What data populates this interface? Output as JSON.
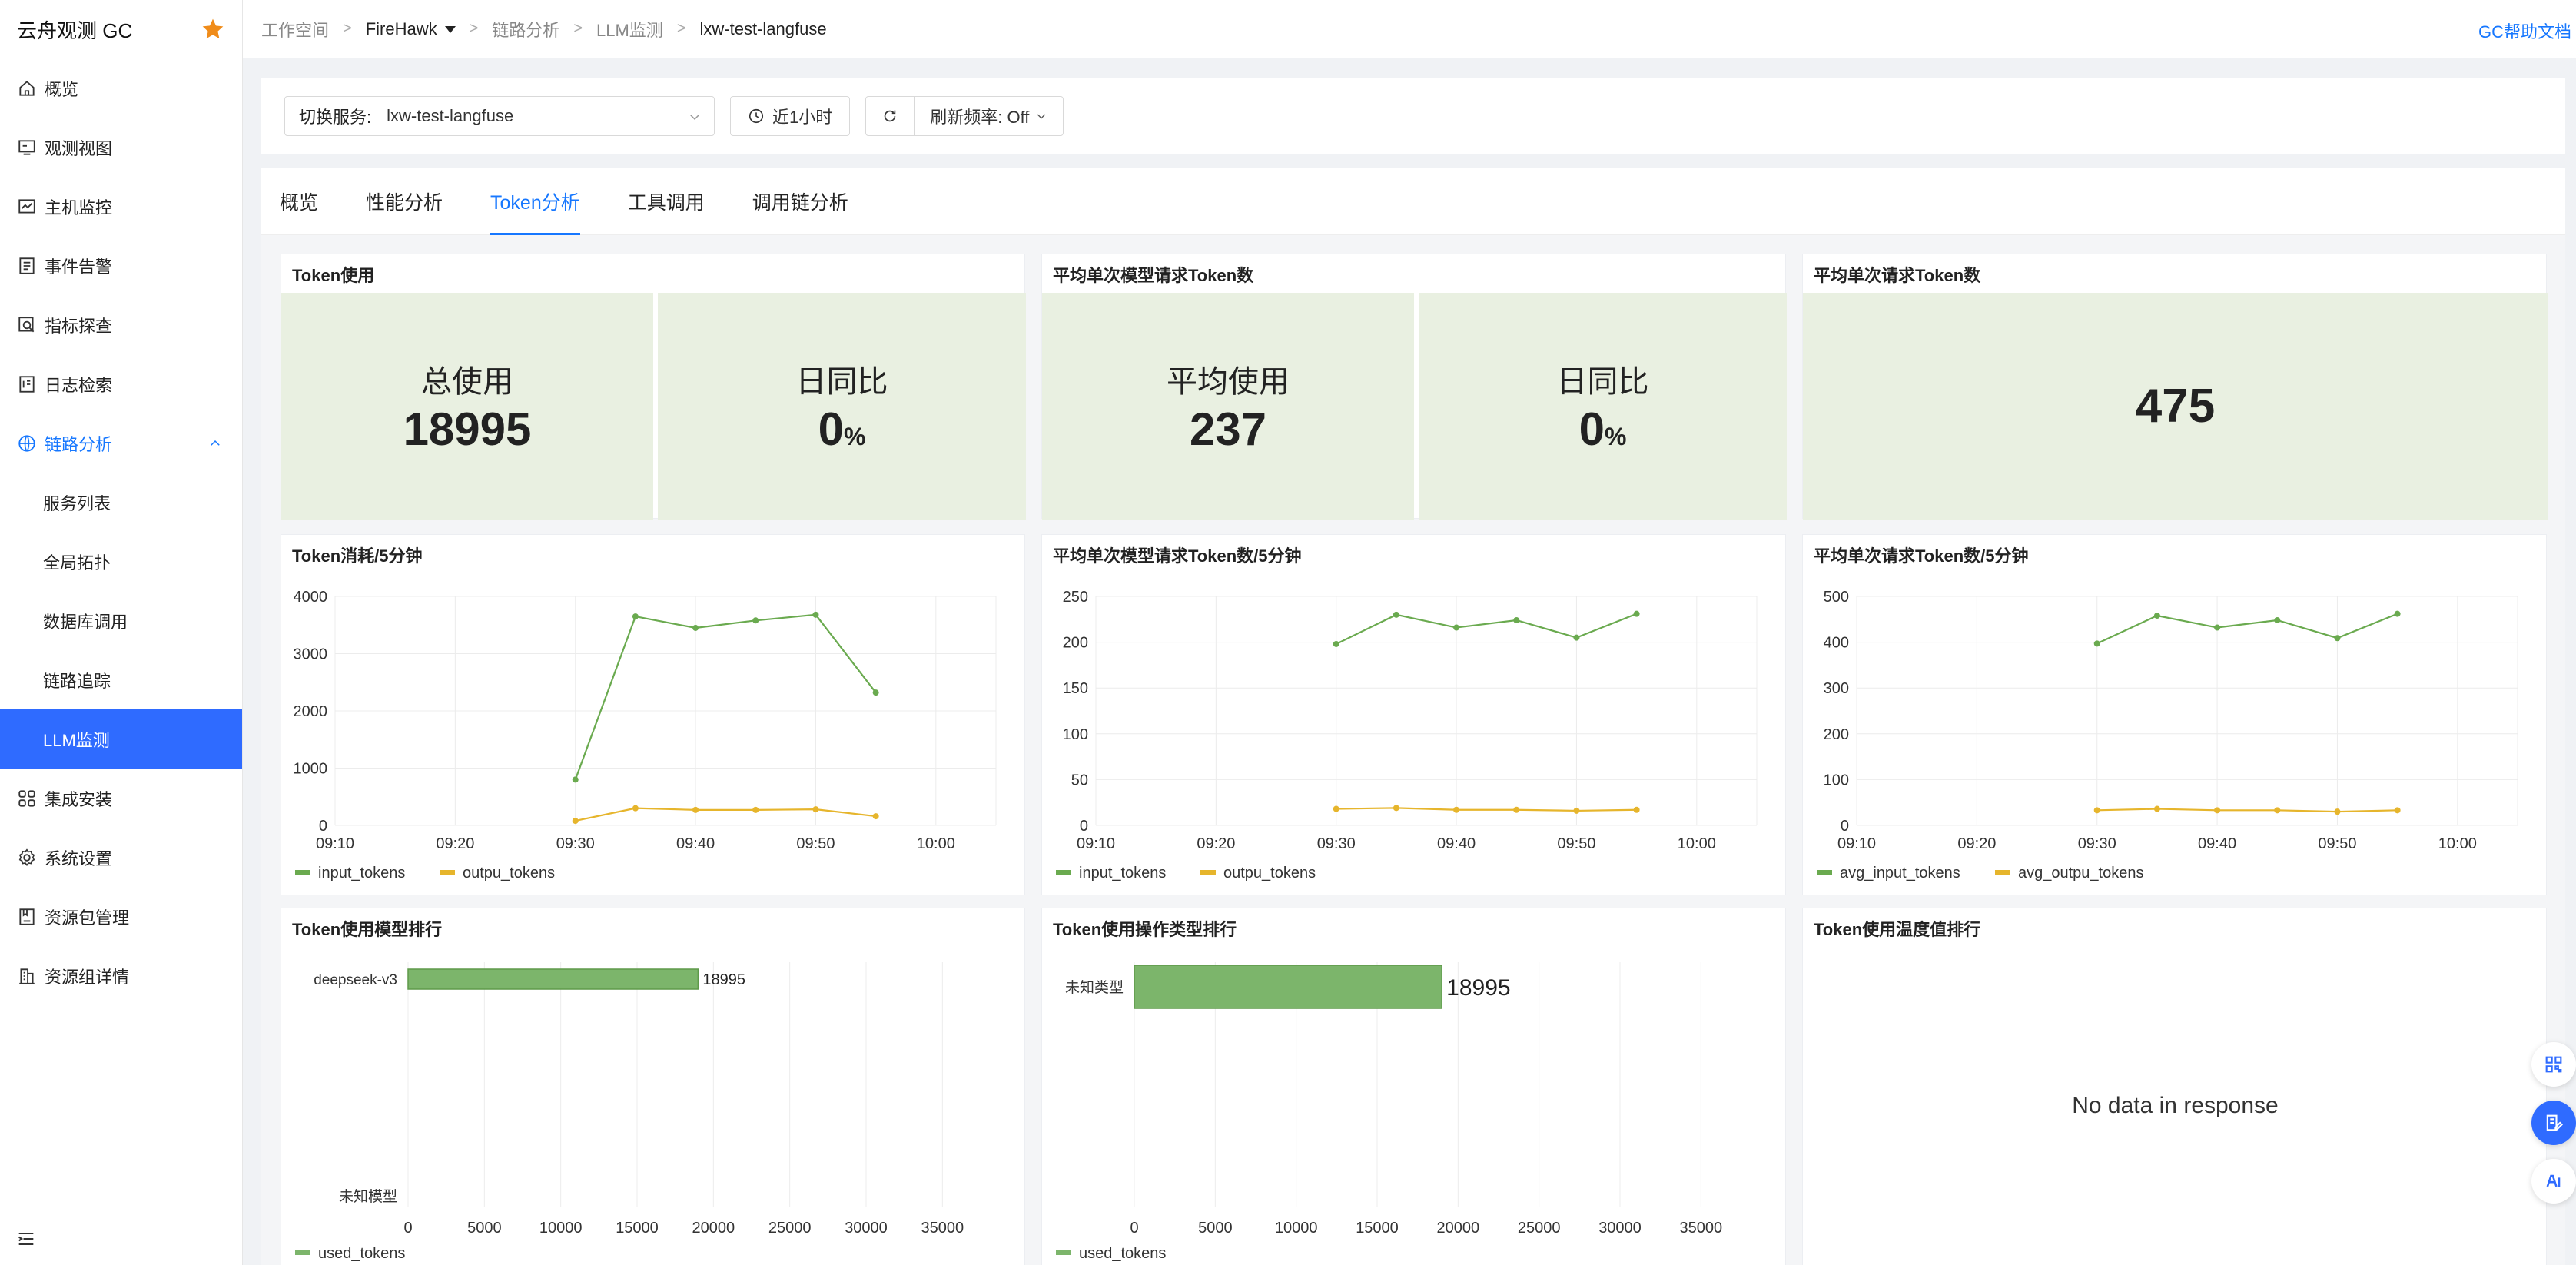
{
  "app": {
    "brand": "云舟观测 GC",
    "help_label": "GC帮助文档"
  },
  "breadcrumb": {
    "workspace": "工作空间",
    "project": "FireHawk",
    "section": "链路分析",
    "subsection": "LLM监测",
    "service": "lxw-test-langfuse"
  },
  "sidebar": {
    "items": [
      {
        "label": "概览",
        "icon": "home-icon"
      },
      {
        "label": "观测视图",
        "icon": "monitor-icon"
      },
      {
        "label": "主机监控",
        "icon": "host-chart-icon"
      },
      {
        "label": "事件告警",
        "icon": "event-list-icon"
      },
      {
        "label": "指标探查",
        "icon": "metric-search-icon"
      },
      {
        "label": "日志检索",
        "icon": "log-icon"
      },
      {
        "label": "链路分析",
        "icon": "trace-globe-icon"
      }
    ],
    "sub_items": [
      "服务列表",
      "全局拓扑",
      "数据库调用",
      "链路追踪",
      "LLM监测"
    ],
    "items_after": [
      {
        "label": "集成安装",
        "icon": "grid-icon"
      },
      {
        "label": "系统设置",
        "icon": "settings-icon"
      },
      {
        "label": "资源包管理",
        "icon": "package-icon"
      },
      {
        "label": "资源组详情",
        "icon": "building-icon"
      }
    ]
  },
  "filters": {
    "service_label": "切换服务:",
    "service_value": "lxw-test-langfuse",
    "time_range": "近1小时",
    "refresh_label": "刷新频率: Off"
  },
  "tabs": [
    "概览",
    "性能分析",
    "Token分析",
    "工具调用",
    "调用链分析"
  ],
  "active_tab": "Token分析",
  "panels": {
    "usage": {
      "title": "Token使用",
      "total_label": "总使用",
      "total_value": "18995",
      "dod_label": "日同比",
      "dod_value": "0",
      "dod_unit": "%"
    },
    "avg_model": {
      "title": "平均单次模型请求Token数",
      "avg_label": "平均使用",
      "avg_value": "237",
      "dod_label": "日同比",
      "dod_value": "0",
      "dod_unit": "%"
    },
    "avg_request": {
      "title": "平均单次请求Token数",
      "value": "475"
    },
    "consume_5m": {
      "title": "Token消耗/5分钟"
    },
    "avg_model_5m": {
      "title": "平均单次模型请求Token数/5分钟"
    },
    "avg_request_5m": {
      "title": "平均单次请求Token数/5分钟"
    },
    "model_rank": {
      "title": "Token使用模型排行"
    },
    "op_rank": {
      "title": "Token使用操作类型排行"
    },
    "temp_rank": {
      "title": "Token使用温度值排行",
      "empty": "No data in response"
    }
  },
  "colors": {
    "accent": "#1677ff",
    "green": "#6aaa4f",
    "yellow": "#e6b52c",
    "bar": "#7cb56b"
  },
  "chart_data": [
    {
      "id": "consume",
      "type": "line",
      "x": [
        "09:30",
        "09:35",
        "09:40",
        "09:45",
        "09:50",
        "09:55"
      ],
      "xticks": [
        "09:10",
        "09:20",
        "09:30",
        "09:40",
        "09:50",
        "10:00"
      ],
      "xlim": [
        "09:10",
        "10:05"
      ],
      "ylim": [
        0,
        4000
      ],
      "yticks": [
        0,
        1000,
        2000,
        3000,
        4000
      ],
      "series": [
        {
          "name": "input_tokens",
          "color": "#6aaa4f",
          "values": [
            800,
            3650,
            3450,
            3580,
            3680,
            2320
          ]
        },
        {
          "name": "outpu_tokens",
          "color": "#e6b52c",
          "values": [
            80,
            300,
            270,
            270,
            280,
            160
          ]
        }
      ]
    },
    {
      "id": "avgmodel",
      "type": "line",
      "x": [
        "09:30",
        "09:35",
        "09:40",
        "09:45",
        "09:50",
        "09:55"
      ],
      "xticks": [
        "09:10",
        "09:20",
        "09:30",
        "09:40",
        "09:50",
        "10:00"
      ],
      "xlim": [
        "09:10",
        "10:05"
      ],
      "ylim": [
        0,
        250
      ],
      "yticks": [
        0,
        50,
        100,
        150,
        200,
        250
      ],
      "series": [
        {
          "name": "input_tokens",
          "color": "#6aaa4f",
          "values": [
            198,
            230,
            216,
            224,
            205,
            231
          ]
        },
        {
          "name": "outpu_tokens",
          "color": "#e6b52c",
          "values": [
            18,
            19,
            17,
            17,
            16,
            17
          ]
        }
      ]
    },
    {
      "id": "avgreq",
      "type": "line",
      "x": [
        "09:30",
        "09:35",
        "09:40",
        "09:45",
        "09:50",
        "09:55"
      ],
      "xticks": [
        "09:10",
        "09:20",
        "09:30",
        "09:40",
        "09:50",
        "10:00"
      ],
      "xlim": [
        "09:10",
        "10:05"
      ],
      "ylim": [
        0,
        500
      ],
      "yticks": [
        0,
        100,
        200,
        300,
        400,
        500
      ],
      "series": [
        {
          "name": "avg_input_tokens",
          "color": "#6aaa4f",
          "values": [
            397,
            458,
            432,
            448,
            409,
            462
          ]
        },
        {
          "name": "avg_outpu_tokens",
          "color": "#e6b52c",
          "values": [
            33,
            36,
            33,
            33,
            30,
            33
          ]
        }
      ]
    },
    {
      "id": "modelrank",
      "type": "bar",
      "orientation": "horizontal",
      "categories": [
        "deepseek-v3",
        "未知模型"
      ],
      "series": [
        {
          "name": "used_tokens",
          "color": "#7cb56b",
          "values": [
            18995,
            null
          ]
        }
      ],
      "xlim": [
        0,
        37500
      ],
      "xticks": [
        0,
        5000,
        10000,
        15000,
        20000,
        25000,
        30000,
        35000
      ]
    },
    {
      "id": "oprank",
      "type": "bar",
      "orientation": "horizontal",
      "categories": [
        "未知类型"
      ],
      "series": [
        {
          "name": "used_tokens",
          "color": "#7cb56b",
          "values": [
            18995
          ]
        }
      ],
      "xlim": [
        0,
        37500
      ],
      "xticks": [
        0,
        5000,
        10000,
        15000,
        20000,
        25000,
        30000,
        35000
      ]
    }
  ]
}
